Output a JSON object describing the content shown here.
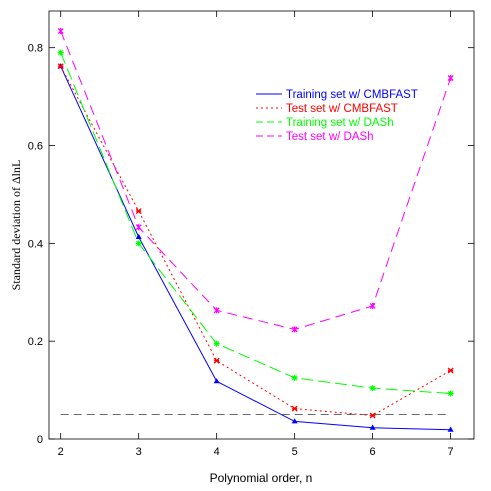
{
  "chart_data": {
    "type": "line",
    "xlabel": "Polynomial order, n",
    "ylabel": "Standard deviation of ΔlnL",
    "x": [
      2,
      3,
      4,
      5,
      6,
      7
    ],
    "xticks": [
      "2",
      "3",
      "4",
      "5",
      "6",
      "7"
    ],
    "yticks": [
      "0",
      "0.2",
      "0.4",
      "0.6",
      "0.8"
    ],
    "xlim": [
      1.85,
      7.3
    ],
    "ylim": [
      0,
      0.875
    ],
    "legend_position": "top-right",
    "grid": false,
    "reference_line": {
      "y": 0.05,
      "color": "#555555"
    },
    "series": [
      {
        "name": "Training set w/ CMBFAST",
        "color": "#0000ff",
        "dash": "",
        "values": [
          0.762,
          0.413,
          0.118,
          0.036,
          0.023,
          0.019
        ]
      },
      {
        "name": "Test set w/ CMBFAST",
        "color": "#ff0000",
        "dash": "2,3",
        "values": [
          0.762,
          0.466,
          0.16,
          0.062,
          0.048,
          0.14
        ]
      },
      {
        "name": "Training set w/ DASh",
        "color": "#00ff00",
        "dash": "12,5",
        "values": [
          0.79,
          0.4,
          0.195,
          0.125,
          0.104,
          0.093
        ]
      },
      {
        "name": "Test set w/ DASh",
        "color": "#ff00ff",
        "dash": "10,6",
        "values": [
          0.834,
          0.433,
          0.263,
          0.224,
          0.272,
          0.738
        ]
      }
    ]
  }
}
